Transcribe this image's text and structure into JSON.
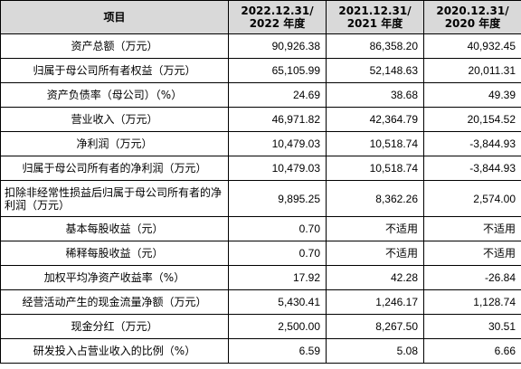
{
  "header": {
    "item": "项目",
    "col_2022_line1": "2022.12.31/",
    "col_2022_line2": "2022 年度",
    "col_2021_line1": "2021.12.31/",
    "col_2021_line2": "2021 年度",
    "col_2020_line1": "2020.12.31/",
    "col_2020_line2": "2020 年度"
  },
  "rows": [
    {
      "label": "资产总额（万元）",
      "v2022": "90,926.38",
      "v2021": "86,358.20",
      "v2020": "40,932.45"
    },
    {
      "label": "归属于母公司所有者权益（万元）",
      "v2022": "65,105.99",
      "v2021": "52,148.63",
      "v2020": "20,011.31"
    },
    {
      "label": "资产负债率（母公司）（%）",
      "v2022": "24.69",
      "v2021": "38.68",
      "v2020": "49.39"
    },
    {
      "label": "营业收入（万元）",
      "v2022": "46,971.82",
      "v2021": "42,364.79",
      "v2020": "20,154.52"
    },
    {
      "label": "净利润（万元）",
      "v2022": "10,479.03",
      "v2021": "10,518.74",
      "v2020": "-3,844.93"
    },
    {
      "label": "归属于母公司所有者的净利润（万元）",
      "v2022": "10,479.03",
      "v2021": "10,518.74",
      "v2020": "-3,844.93"
    },
    {
      "label": "扣除非经常性损益后归属于母公司所有者的净利润（万元）",
      "v2022": "9,895.25",
      "v2021": "8,362.26",
      "v2020": "2,574.00"
    },
    {
      "label": "基本每股收益（元）",
      "v2022": "0.70",
      "v2021": "不适用",
      "v2020": "不适用"
    },
    {
      "label": "稀释每股收益（元）",
      "v2022": "0.70",
      "v2021": "不适用",
      "v2020": "不适用"
    },
    {
      "label": "加权平均净资产收益率（%）",
      "v2022": "17.92",
      "v2021": "42.28",
      "v2020": "-26.84"
    },
    {
      "label": "经营活动产生的现金流量净额（万元）",
      "v2022": "5,430.41",
      "v2021": "1,246.17",
      "v2020": "1,128.74"
    },
    {
      "label": "现金分红（万元）",
      "v2022": "2,500.00",
      "v2021": "8,267.50",
      "v2020": "30.51"
    },
    {
      "label": "研发投入占营业收入的比例（%）",
      "v2022": "6.59",
      "v2021": "5.08",
      "v2020": "6.66"
    }
  ]
}
